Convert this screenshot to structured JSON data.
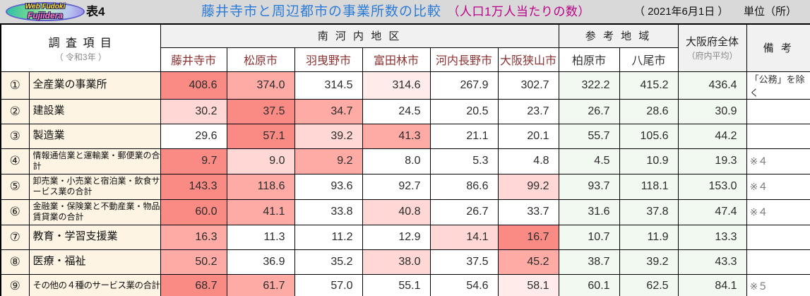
{
  "topbar": {
    "logo_line1": "Web Fudoki",
    "logo_line2": "Fujiidera",
    "table_no": "表4",
    "title": "藤井寺市と周辺都市の事業所数の比較",
    "title_note": "（人口1万人当たりの数）",
    "date": "（ 2021年6月1日 ）",
    "unit": "単位（所）"
  },
  "header": {
    "survey_title": "調 査 項 目",
    "survey_sub": "（ 令和3年 ）",
    "group_south": "南 河 内 地 区",
    "group_ref": "参 考 地 域",
    "south_cities": [
      "藤井寺市",
      "松原市",
      "羽曳野市",
      "富田林市",
      "河内長野市",
      "大阪狭山市"
    ],
    "ref_cities": [
      "柏原市",
      "八尾市"
    ],
    "osaka_line1": "大阪府全体",
    "osaka_line2": "（府内平均）",
    "remarks": "備 考"
  },
  "rows": [
    {
      "no": "①",
      "label": "全産業の事業所",
      "size": "n",
      "values": [
        "408.6",
        "374.0",
        "314.5",
        "314.6",
        "267.9",
        "302.7",
        "322.2",
        "415.2",
        "436.4"
      ],
      "levels": [
        "S",
        "M",
        "W",
        "VL",
        "W",
        "W",
        "G",
        "G",
        "G"
      ],
      "remark": "「公務」を除く"
    },
    {
      "no": "②",
      "label": "建設業",
      "size": "n",
      "values": [
        "30.2",
        "37.5",
        "34.7",
        "24.5",
        "20.5",
        "23.7",
        "26.7",
        "28.6",
        "30.9"
      ],
      "levels": [
        "L",
        "S",
        "M",
        "W",
        "W",
        "W",
        "G",
        "G",
        "G"
      ],
      "remark": ""
    },
    {
      "no": "③",
      "label": "製造業",
      "size": "n",
      "values": [
        "29.6",
        "57.1",
        "39.2",
        "41.3",
        "21.1",
        "20.1",
        "55.7",
        "105.6",
        "44.2"
      ],
      "levels": [
        "W",
        "S",
        "L",
        "M",
        "W",
        "W",
        "G",
        "G",
        "G"
      ],
      "remark": ""
    },
    {
      "no": "④",
      "label": "情報通信業と運輸業・郵便業の合計",
      "size": "s",
      "values": [
        "9.7",
        "9.0",
        "9.2",
        "8.0",
        "5.3",
        "4.8",
        "4.5",
        "10.9",
        "19.3"
      ],
      "levels": [
        "S",
        "L",
        "M",
        "W",
        "W",
        "W",
        "G",
        "G",
        "G"
      ],
      "remark": "※４"
    },
    {
      "no": "⑤",
      "label": "卸売業・小売業と宿泊業・飲食サービス業の合計",
      "size": "s",
      "values": [
        "143.3",
        "118.6",
        "93.6",
        "92.7",
        "86.6",
        "99.2",
        "93.7",
        "118.1",
        "153.0"
      ],
      "levels": [
        "S",
        "M",
        "W",
        "W",
        "W",
        "L",
        "G",
        "G",
        "G"
      ],
      "remark": "※４"
    },
    {
      "no": "⑥",
      "label": "金融業・保険業と不動産業・物品賃貸業の合計",
      "size": "s",
      "values": [
        "60.0",
        "41.1",
        "33.8",
        "40.8",
        "26.7",
        "33.7",
        "31.6",
        "37.8",
        "47.4"
      ],
      "levels": [
        "S",
        "M",
        "W",
        "L",
        "W",
        "W",
        "G",
        "G",
        "G"
      ],
      "remark": "※４"
    },
    {
      "no": "⑦",
      "label": "教育・学習支援業",
      "size": "n",
      "values": [
        "16.3",
        "11.3",
        "11.2",
        "12.9",
        "14.1",
        "16.7",
        "10.7",
        "11.9",
        "13.3"
      ],
      "levels": [
        "M",
        "W",
        "W",
        "W",
        "L",
        "S",
        "G",
        "G",
        "G"
      ],
      "remark": ""
    },
    {
      "no": "⑧",
      "label": "医療・福祉",
      "size": "n",
      "values": [
        "50.2",
        "36.9",
        "35.2",
        "38.0",
        "37.5",
        "45.2",
        "38.7",
        "39.2",
        "43.3"
      ],
      "levels": [
        "M",
        "W",
        "W",
        "L",
        "W",
        "M",
        "G",
        "G",
        "G"
      ],
      "remark": ""
    },
    {
      "no": "⑨",
      "label": "その他の４種のサービス業の合計",
      "size": "c",
      "values": [
        "68.7",
        "61.7",
        "57.0",
        "55.1",
        "54.6",
        "58.1",
        "60.1",
        "62.5",
        "84.1"
      ],
      "levels": [
        "S",
        "M",
        "W",
        "W",
        "W",
        "VL",
        "G",
        "G",
        "G"
      ],
      "remark": "※５"
    }
  ],
  "colors": {
    "S": "#FA8A84",
    "M": "#FFABA5",
    "L": "#FFD8D5",
    "VL": "#FFECEA",
    "W": "#FFFFFF",
    "G": "#F2F9F1",
    "title_blue": "#2B7BD8",
    "accent_magenta": "#BB0088",
    "city_red": "#8B3232",
    "label_cream": "#FDF4E3",
    "header_gray": "#F1F1F1",
    "topbar_gray": "#D9D9D9"
  }
}
